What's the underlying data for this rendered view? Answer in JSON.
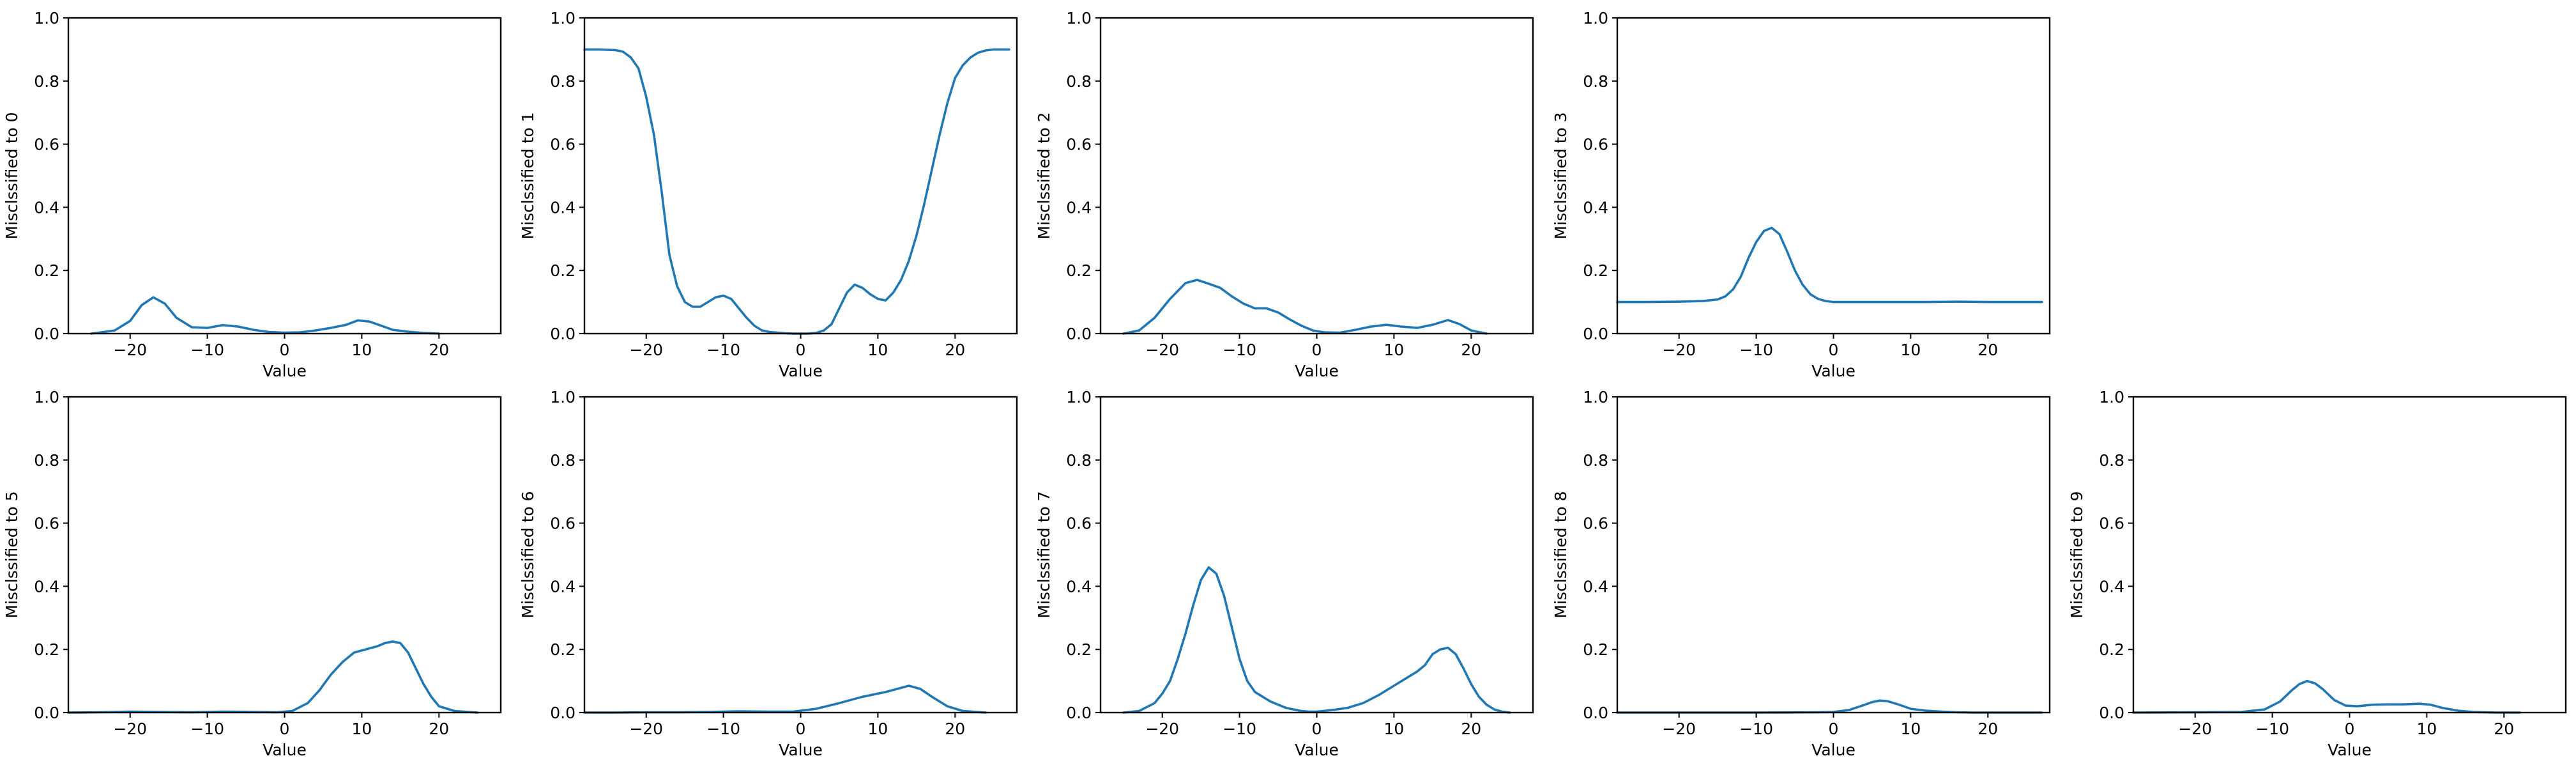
{
  "colors": {
    "line": "#1f77b4"
  },
  "chart_data": [
    {
      "type": "line",
      "xlabel": "Value",
      "ylabel": "Misclssified to 0",
      "xlim": [
        -28,
        28
      ],
      "ylim": [
        0,
        1
      ],
      "xticks": [
        -20,
        -10,
        0,
        10,
        20
      ],
      "yticks": [
        0.0,
        0.2,
        0.4,
        0.6,
        0.8,
        1.0
      ],
      "x": [
        -25,
        -22,
        -20,
        -18.5,
        -17,
        -15.5,
        -14,
        -12,
        -10,
        -8,
        -6,
        -4,
        -2,
        0,
        2,
        4,
        6,
        8,
        9.5,
        11,
        12.5,
        14,
        16,
        18,
        20
      ],
      "y": [
        0.0,
        0.01,
        0.04,
        0.09,
        0.115,
        0.095,
        0.05,
        0.02,
        0.018,
        0.027,
        0.022,
        0.012,
        0.005,
        0.003,
        0.004,
        0.01,
        0.018,
        0.028,
        0.042,
        0.038,
        0.025,
        0.012,
        0.006,
        0.002,
        0.0
      ]
    },
    {
      "type": "line",
      "xlabel": "Value",
      "ylabel": "Misclssified to 1",
      "xlim": [
        -28,
        28
      ],
      "ylim": [
        0,
        1
      ],
      "xticks": [
        -20,
        -10,
        0,
        10,
        20
      ],
      "yticks": [
        0.0,
        0.2,
        0.4,
        0.6,
        0.8,
        1.0
      ],
      "x": [
        -28,
        -26,
        -24,
        -23,
        -22,
        -21,
        -20,
        -19,
        -18,
        -17,
        -16,
        -15,
        -14,
        -13,
        -12,
        -11,
        -10,
        -9,
        -8,
        -7,
        -6,
        -5,
        -4,
        -3,
        -2,
        -1,
        0,
        1,
        2,
        3,
        4,
        5,
        6,
        7,
        8,
        9,
        10,
        11,
        12,
        13,
        14,
        15,
        16,
        17,
        18,
        19,
        20,
        21,
        22,
        23,
        24,
        25,
        26,
        27
      ],
      "y": [
        0.9,
        0.9,
        0.898,
        0.893,
        0.875,
        0.84,
        0.75,
        0.63,
        0.45,
        0.25,
        0.15,
        0.1,
        0.085,
        0.085,
        0.1,
        0.115,
        0.12,
        0.11,
        0.08,
        0.05,
        0.025,
        0.01,
        0.005,
        0.003,
        0.001,
        0.0,
        0.0,
        0.0,
        0.002,
        0.01,
        0.03,
        0.08,
        0.13,
        0.155,
        0.145,
        0.125,
        0.11,
        0.105,
        0.13,
        0.17,
        0.23,
        0.31,
        0.41,
        0.52,
        0.63,
        0.73,
        0.81,
        0.85,
        0.875,
        0.89,
        0.897,
        0.9,
        0.9,
        0.9
      ]
    },
    {
      "type": "line",
      "xlabel": "Value",
      "ylabel": "Misclssified to 2",
      "xlim": [
        -28,
        28
      ],
      "ylim": [
        0,
        1
      ],
      "xticks": [
        -20,
        -10,
        0,
        10,
        20
      ],
      "yticks": [
        0.0,
        0.2,
        0.4,
        0.6,
        0.8,
        1.0
      ],
      "x": [
        -25,
        -23,
        -21,
        -19,
        -17,
        -15.5,
        -14,
        -12.5,
        -11,
        -9.5,
        -8,
        -6.5,
        -5,
        -3.5,
        -2,
        -0.5,
        1,
        3,
        5,
        7,
        9,
        11,
        13,
        15,
        17,
        18.5,
        20,
        22
      ],
      "y": [
        0.0,
        0.01,
        0.05,
        0.11,
        0.16,
        0.17,
        0.158,
        0.145,
        0.118,
        0.095,
        0.08,
        0.08,
        0.067,
        0.045,
        0.025,
        0.01,
        0.004,
        0.003,
        0.012,
        0.022,
        0.028,
        0.022,
        0.018,
        0.028,
        0.043,
        0.03,
        0.01,
        0.0
      ]
    },
    {
      "type": "line",
      "xlabel": "Value",
      "ylabel": "Misclssified to 3",
      "xlim": [
        -28,
        28
      ],
      "ylim": [
        0,
        1
      ],
      "xticks": [
        -20,
        -10,
        0,
        10,
        20
      ],
      "yticks": [
        0.0,
        0.2,
        0.4,
        0.6,
        0.8,
        1.0
      ],
      "x": [
        -28,
        -24,
        -20,
        -17,
        -15,
        -14,
        -13,
        -12,
        -11,
        -10,
        -9,
        -8,
        -7,
        -6,
        -5,
        -4,
        -3,
        -2,
        -1,
        0,
        4,
        8,
        12,
        16,
        20,
        24,
        27
      ],
      "y": [
        0.1,
        0.1,
        0.101,
        0.103,
        0.108,
        0.118,
        0.14,
        0.18,
        0.24,
        0.29,
        0.325,
        0.335,
        0.315,
        0.26,
        0.2,
        0.155,
        0.125,
        0.11,
        0.103,
        0.1,
        0.1,
        0.1,
        0.1,
        0.101,
        0.1,
        0.1,
        0.1
      ]
    },
    {
      "type": "line",
      "xlabel": "Value",
      "ylabel": "Misclssified to 5",
      "xlim": [
        -28,
        28
      ],
      "ylim": [
        0,
        1
      ],
      "xticks": [
        -20,
        -10,
        0,
        10,
        20
      ],
      "yticks": [
        0.0,
        0.2,
        0.4,
        0.6,
        0.8,
        1.0
      ],
      "x": [
        -28,
        -24,
        -20,
        -16,
        -12,
        -8,
        -4,
        -1,
        1,
        3,
        4.5,
        6,
        7.5,
        9,
        10.5,
        12,
        13,
        14,
        15,
        16,
        17,
        18,
        19,
        20,
        22,
        25
      ],
      "y": [
        0.0,
        0.001,
        0.003,
        0.002,
        0.001,
        0.003,
        0.002,
        0.001,
        0.005,
        0.03,
        0.07,
        0.12,
        0.16,
        0.19,
        0.2,
        0.21,
        0.22,
        0.225,
        0.22,
        0.19,
        0.14,
        0.09,
        0.05,
        0.02,
        0.005,
        0.0
      ]
    },
    {
      "type": "line",
      "xlabel": "Value",
      "ylabel": "Misclssified to 6",
      "xlim": [
        -28,
        28
      ],
      "ylim": [
        0,
        1
      ],
      "xticks": [
        -20,
        -10,
        0,
        10,
        20
      ],
      "yticks": [
        0.0,
        0.2,
        0.4,
        0.6,
        0.8,
        1.0
      ],
      "x": [
        -28,
        -24,
        -20,
        -16,
        -12,
        -8,
        -4,
        -1,
        2,
        5,
        8,
        11,
        12.5,
        14,
        15.5,
        17,
        19,
        21,
        24
      ],
      "y": [
        0.0,
        0.0,
        0.001,
        0.001,
        0.002,
        0.004,
        0.003,
        0.003,
        0.012,
        0.03,
        0.05,
        0.065,
        0.075,
        0.085,
        0.075,
        0.05,
        0.02,
        0.005,
        0.0
      ]
    },
    {
      "type": "line",
      "xlabel": "Value",
      "ylabel": "Misclssified to 7",
      "xlim": [
        -28,
        28
      ],
      "ylim": [
        0,
        1
      ],
      "xticks": [
        -20,
        -10,
        0,
        10,
        20
      ],
      "yticks": [
        0.0,
        0.2,
        0.4,
        0.6,
        0.8,
        1.0
      ],
      "x": [
        -25,
        -23,
        -21,
        -20,
        -19,
        -18,
        -17,
        -16,
        -15,
        -14,
        -13,
        -12,
        -11,
        -10,
        -9,
        -8,
        -7,
        -6,
        -5,
        -4,
        -3,
        -2,
        -1,
        0,
        2,
        4,
        6,
        8,
        10,
        12,
        13,
        14,
        15,
        16,
        17,
        18,
        19,
        20,
        21,
        22,
        23,
        24,
        25
      ],
      "y": [
        0.0,
        0.005,
        0.03,
        0.06,
        0.1,
        0.17,
        0.25,
        0.34,
        0.42,
        0.46,
        0.44,
        0.37,
        0.27,
        0.17,
        0.1,
        0.065,
        0.05,
        0.035,
        0.025,
        0.015,
        0.01,
        0.005,
        0.003,
        0.003,
        0.008,
        0.015,
        0.03,
        0.055,
        0.085,
        0.115,
        0.13,
        0.15,
        0.185,
        0.2,
        0.205,
        0.185,
        0.14,
        0.09,
        0.05,
        0.025,
        0.01,
        0.003,
        0.0
      ]
    },
    {
      "type": "line",
      "xlabel": "Value",
      "ylabel": "Misclssified to 8",
      "xlim": [
        -28,
        28
      ],
      "ylim": [
        0,
        1
      ],
      "xticks": [
        -20,
        -10,
        0,
        10,
        20
      ],
      "yticks": [
        0.0,
        0.2,
        0.4,
        0.6,
        0.8,
        1.0
      ],
      "x": [
        -28,
        -20,
        -10,
        -2,
        0,
        2,
        3.5,
        5,
        6,
        7,
        8.5,
        10,
        12,
        14,
        16,
        18,
        20,
        27
      ],
      "y": [
        0.0,
        0.0,
        0.0,
        0.001,
        0.002,
        0.008,
        0.02,
        0.033,
        0.038,
        0.036,
        0.025,
        0.012,
        0.006,
        0.003,
        0.001,
        0.0,
        0.0,
        0.0
      ]
    },
    {
      "type": "line",
      "xlabel": "Value",
      "ylabel": "Misclssified to 9",
      "xlim": [
        -28,
        28
      ],
      "ylim": [
        0,
        1
      ],
      "xticks": [
        -20,
        -10,
        0,
        10,
        20
      ],
      "yticks": [
        0.0,
        0.2,
        0.4,
        0.6,
        0.8,
        1.0
      ],
      "x": [
        -28,
        -20,
        -14,
        -11,
        -9,
        -7.5,
        -6.5,
        -5.5,
        -4.5,
        -3.5,
        -2,
        -0.5,
        1,
        3,
        5,
        7,
        9,
        10.5,
        12,
        14,
        16,
        19,
        22
      ],
      "y": [
        0.0,
        0.001,
        0.002,
        0.01,
        0.035,
        0.07,
        0.09,
        0.1,
        0.093,
        0.075,
        0.04,
        0.022,
        0.02,
        0.025,
        0.026,
        0.026,
        0.028,
        0.025,
        0.015,
        0.006,
        0.002,
        0.0,
        0.0
      ]
    }
  ]
}
